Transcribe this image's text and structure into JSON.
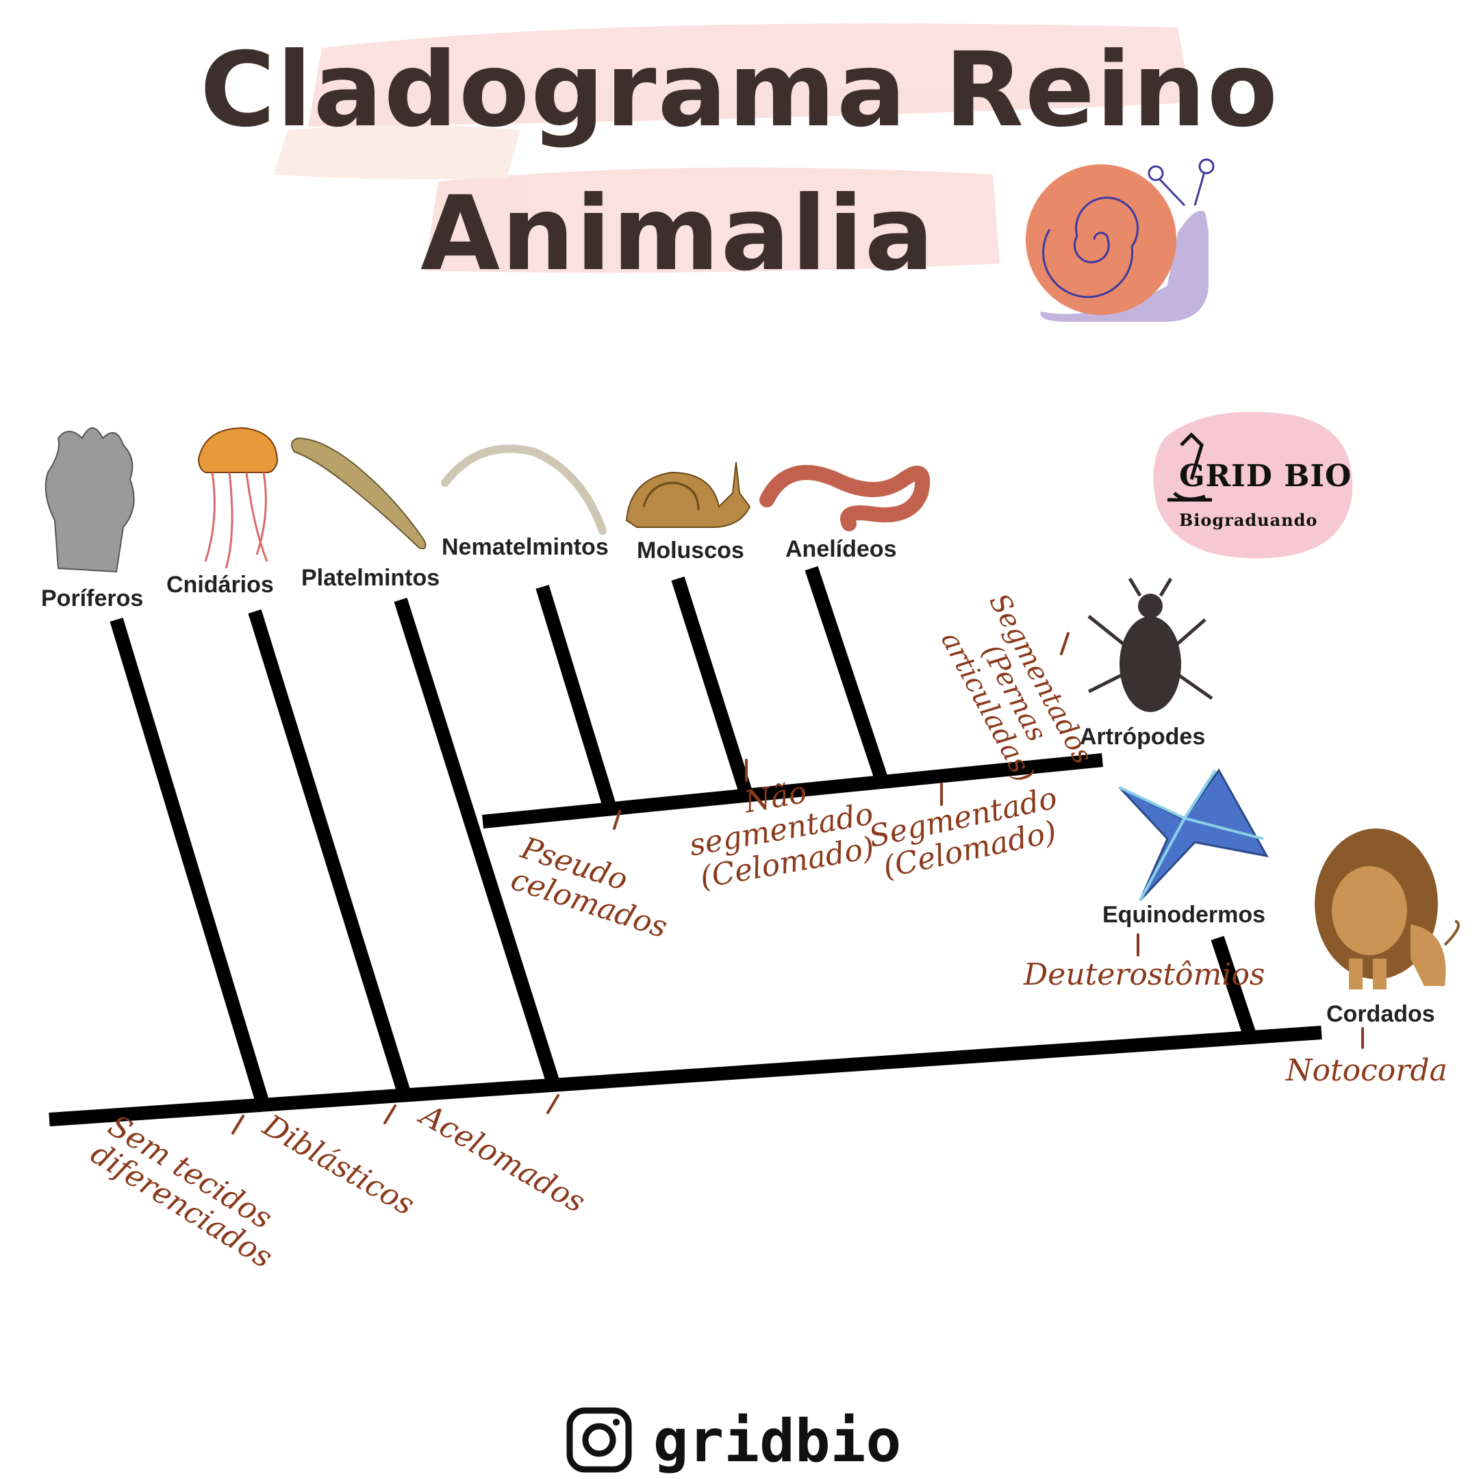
{
  "title": {
    "line1": "Cladograma Reino",
    "line2": "Animalia"
  },
  "taxa": [
    {
      "id": "poriferos",
      "label": "Poríferos"
    },
    {
      "id": "cnidarios",
      "label": "Cnidários"
    },
    {
      "id": "platelmintos",
      "label": "Platelmintos"
    },
    {
      "id": "nematelmintos",
      "label": "Nematelmintos"
    },
    {
      "id": "moluscos",
      "label": "Moluscos"
    },
    {
      "id": "anelideos",
      "label": "Anelídeos"
    },
    {
      "id": "artropodes",
      "label": "Artrópodes"
    },
    {
      "id": "equinodermos",
      "label": "Equinodermos"
    },
    {
      "id": "cordados",
      "label": "Cordados"
    }
  ],
  "characters": {
    "sem_tecidos": "Sem tecidos\ndiferenciados",
    "diblasticos": "Diblásticos",
    "acelomados": "Acelomados",
    "pseudo": "Pseudo\ncelomados",
    "nao_segmentado": "Não\nsegmentado\n(Celomado)",
    "segmentado": "Segmentado\n(Celomado)",
    "segmentados_pernas": "Segmentados\n(Pernas\narticuladas)",
    "deuterostomios": "Deuterostômios",
    "notocorda": "Notocorda"
  },
  "logo": {
    "title": "GRID BIO",
    "subtitle": "Biograduando"
  },
  "footer": {
    "handle": "gridbio"
  },
  "icons": [
    "snail-illustration",
    "sponge-icon",
    "jellyfish-icon",
    "flatworm-icon",
    "roundworm-icon",
    "snail-icon",
    "earthworm-icon",
    "insect-icon",
    "starfish-icon",
    "lion-icon",
    "microscope-icon",
    "instagram-icon"
  ],
  "colors": {
    "title": "#3d2f2b",
    "notes": "#8a3a1c",
    "lines": "#000000",
    "snail_shell": "#e8896a",
    "snail_body": "#c3b4de",
    "logo_bg": "#f6c8d4",
    "starfish": "#4a72c9"
  }
}
